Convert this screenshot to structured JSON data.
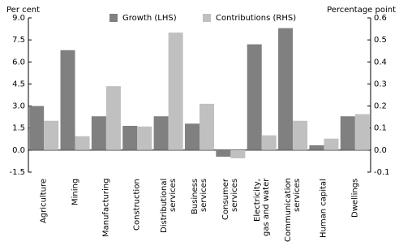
{
  "chart_data": {
    "type": "bar",
    "y_label": "Per cent",
    "y2_label": "Percentage point",
    "categories": [
      "Agriculture",
      "Mining",
      "Manufacturing",
      "Construction",
      "Distributional\nservices",
      "Business\nservices",
      "Consumer\nservices",
      "Electricity,\ngas and water",
      "Communication\nservices",
      "Human capital",
      "Dwellings"
    ],
    "series": [
      {
        "name": "Growth (LHS)",
        "color": "#808080",
        "values": [
          3.0,
          6.8,
          2.3,
          1.65,
          2.3,
          1.8,
          -0.45,
          7.2,
          8.3,
          0.33,
          2.3
        ]
      },
      {
        "name": "Contributions (RHS)",
        "color": "#c0c0c0",
        "axis": "y2",
        "values": [
          0.133,
          0.063,
          0.29,
          0.107,
          0.533,
          0.21,
          -0.037,
          0.067,
          0.133,
          0.052,
          0.163
        ]
      }
    ],
    "ylim": [
      -1.5,
      9.0
    ],
    "yticks": [
      {
        "value": 9.0,
        "label": "9.0"
      },
      7.5,
      {
        "value": 6.0,
        "label": "6.0"
      },
      4.5,
      {
        "value": 3.0,
        "label": "3.0"
      },
      1.5,
      {
        "value": 0,
        "label": "0.0"
      },
      -1.5
    ],
    "y2lim": [
      -0.1,
      0.6
    ],
    "y2ticks": [
      0.6,
      0.5,
      0.4,
      0.3,
      0.2,
      0.1,
      {
        "value": 0,
        "label": "0.0"
      },
      -0.1
    ]
  }
}
